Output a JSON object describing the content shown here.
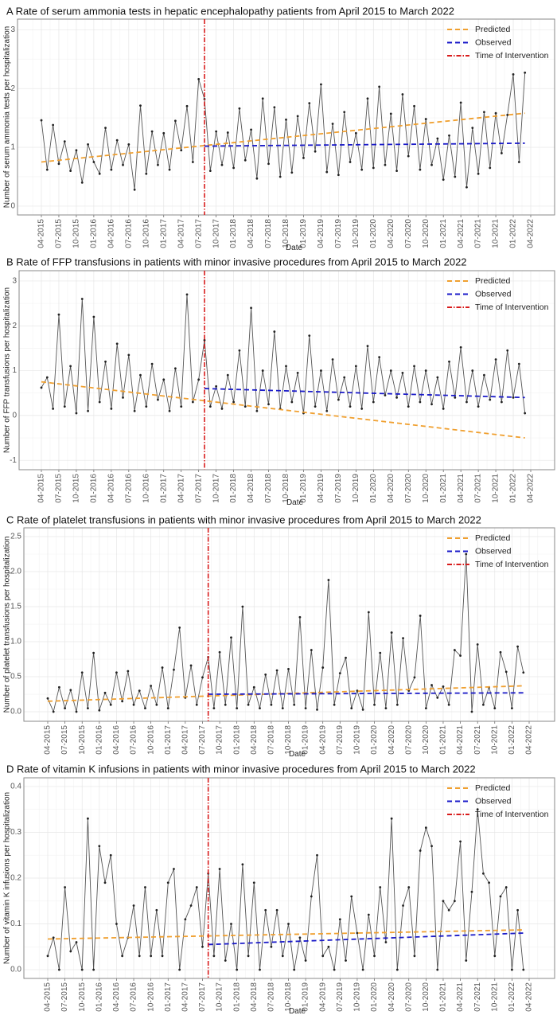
{
  "chart_data": [
    {
      "type": "line",
      "title": "A  Rate of serum ammonia tests in hepatic encephalopathy patients from April 2015 to March 2022",
      "xlabel": "Date",
      "ylabel": "Number of serum ammonia tests per hospitalization",
      "ylim": [
        -0.15,
        3.18
      ],
      "yticks": [
        0,
        1,
        2,
        3
      ],
      "ytick_labels": [
        "0",
        "1",
        "2",
        "3"
      ],
      "x_tick_labels": [
        "04-2015",
        "07-2015",
        "10-2015",
        "01-2016",
        "04-2016",
        "07-2016",
        "10-2016",
        "01-2017",
        "04-2017",
        "07-2017",
        "10-2017",
        "01-2018",
        "04-2018",
        "07-2018",
        "10-2018",
        "01-2019",
        "04-2019",
        "07-2019",
        "10-2019",
        "01-2020",
        "04-2020",
        "07-2020",
        "10-2020",
        "01-2021",
        "04-2021",
        "07-2021",
        "10-2021",
        "01-2022",
        "04-2022"
      ],
      "x_unit": "months since April 2015",
      "intervention_month": 28,
      "values": [
        1.46,
        0.62,
        1.38,
        0.72,
        1.1,
        0.6,
        0.95,
        0.4,
        1.05,
        0.75,
        0.55,
        1.33,
        0.62,
        1.12,
        0.7,
        1.05,
        0.28,
        1.71,
        0.55,
        1.27,
        0.7,
        1.24,
        0.62,
        1.45,
        0.95,
        1.7,
        0.75,
        2.16,
        1.82,
        0.6,
        1.27,
        0.7,
        1.25,
        0.65,
        1.66,
        0.78,
        1.3,
        0.47,
        1.83,
        0.72,
        1.68,
        0.5,
        1.47,
        0.57,
        1.53,
        0.82,
        1.75,
        0.93,
        2.07,
        0.58,
        1.4,
        0.53,
        1.6,
        0.75,
        1.24,
        0.62,
        1.83,
        0.65,
        2.03,
        0.7,
        1.57,
        0.6,
        1.9,
        0.85,
        1.7,
        0.62,
        1.48,
        0.7,
        1.15,
        0.45,
        1.2,
        0.5,
        1.76,
        0.32,
        1.33,
        0.55,
        1.6,
        0.65,
        1.58,
        0.9,
        1.55,
        2.24,
        0.75,
        2.27
      ],
      "predicted": {
        "start": 0.75,
        "end": 1.58
      },
      "observed_trend": {
        "start": 1.02,
        "end": 1.07
      },
      "legend": [
        "Predicted",
        "Observed",
        "Time of Intervention"
      ],
      "legend_position": "top-right"
    },
    {
      "type": "line",
      "title": "B  Rate of FFP transfusions in patients with minor invasive procedures from April 2015 to March 2022",
      "xlabel": "Date",
      "ylabel": "Number of FFP transfusions per hospitalization",
      "ylim": [
        -1.21,
        3.23
      ],
      "yticks": [
        -1,
        0,
        1,
        2,
        3
      ],
      "ytick_labels": [
        "-1",
        "0",
        "1",
        "2",
        "3"
      ],
      "x_tick_labels": [
        "04-2015",
        "07-2015",
        "10-2015",
        "01-2016",
        "04-2016",
        "07-2016",
        "10-2016",
        "01-2017",
        "04-2017",
        "07-2017",
        "10-2017",
        "01-2018",
        "04-2018",
        "07-2018",
        "10-2018",
        "01-2019",
        "04-2019",
        "07-2019",
        "10-2019",
        "01-2020",
        "04-2020",
        "07-2020",
        "10-2020",
        "01-2021",
        "04-2021",
        "07-2021",
        "10-2021",
        "01-2022",
        "04-2022"
      ],
      "x_unit": "months since April 2015",
      "intervention_month": 28,
      "values": [
        0.62,
        0.85,
        0.15,
        2.25,
        0.2,
        1.1,
        0.05,
        2.6,
        0.1,
        2.2,
        0.3,
        1.2,
        0.15,
        1.6,
        0.4,
        1.35,
        0.1,
        0.9,
        0.2,
        1.15,
        0.35,
        0.8,
        0.1,
        1.05,
        0.2,
        2.7,
        0.3,
        0.8,
        1.68,
        0.2,
        0.65,
        0.15,
        0.9,
        0.3,
        1.45,
        0.2,
        2.4,
        0.1,
        1.0,
        0.25,
        1.87,
        0.15,
        1.1,
        0.3,
        0.95,
        0.05,
        1.78,
        0.2,
        1.0,
        0.1,
        1.25,
        0.35,
        0.85,
        0.2,
        1.1,
        0.15,
        1.55,
        0.3,
        1.3,
        0.45,
        1.0,
        0.4,
        0.95,
        0.2,
        1.1,
        0.3,
        1.0,
        0.25,
        0.85,
        0.15,
        1.2,
        0.4,
        1.52,
        0.3,
        1.0,
        0.2,
        0.9,
        0.35,
        1.25,
        0.3,
        1.45,
        0.4,
        1.15,
        0.05
      ],
      "predicted": {
        "start": 0.75,
        "end": -0.5
      },
      "observed_trend": {
        "start": 0.6,
        "end": 0.4
      },
      "legend": [
        "Predicted",
        "Observed",
        "Time of Intervention"
      ],
      "legend_position": "top-right"
    },
    {
      "type": "line",
      "title": "C  Rate of platelet transfusions in patients with minor invasive procedures from April 2015 to March 2022",
      "xlabel": "Date",
      "ylabel": "Number of platelet transfusions per hospitalization",
      "ylim": [
        -0.136,
        2.625
      ],
      "yticks": [
        0,
        0.5,
        1,
        1.5,
        2,
        2.5
      ],
      "ytick_labels": [
        "0.0",
        "0.5",
        "1.0",
        "1.5",
        "2.0",
        "2.5"
      ],
      "x_tick_labels": [
        "04-2015",
        "07-2015",
        "10-2015",
        "01-2016",
        "04-2016",
        "07-2016",
        "10-2016",
        "01-2017",
        "04-2017",
        "07-2017",
        "10-2017",
        "01-2018",
        "04-2018",
        "07-2018",
        "10-2018",
        "01-2019",
        "04-2019",
        "07-2019",
        "10-2019",
        "01-2020",
        "04-2020",
        "07-2020",
        "10-2020",
        "01-2021",
        "04-2021",
        "07-2021",
        "10-2021",
        "01-2022",
        "04-2022"
      ],
      "x_unit": "months since April 2015",
      "intervention_month": 28,
      "values": [
        0.19,
        0.0,
        0.35,
        0.05,
        0.31,
        0.0,
        0.56,
        0.05,
        0.84,
        0.02,
        0.27,
        0.1,
        0.56,
        0.15,
        0.58,
        0.1,
        0.3,
        0.05,
        0.37,
        0.1,
        0.63,
        0.05,
        0.6,
        1.2,
        0.2,
        0.66,
        0.1,
        0.49,
        0.78,
        0.05,
        0.85,
        0.1,
        1.06,
        0.05,
        1.5,
        0.1,
        0.35,
        0.05,
        0.53,
        0.1,
        0.59,
        0.05,
        0.61,
        0.1,
        1.35,
        0.05,
        0.88,
        0.03,
        0.63,
        1.88,
        0.1,
        0.55,
        0.77,
        0.05,
        0.3,
        0.03,
        1.42,
        0.1,
        0.84,
        0.05,
        1.13,
        0.1,
        1.05,
        0.3,
        0.49,
        1.37,
        0.05,
        0.38,
        0.2,
        0.36,
        0.1,
        0.88,
        0.8,
        2.25,
        0.0,
        0.96,
        0.1,
        0.35,
        0.05,
        0.85,
        0.57,
        0.05,
        0.93,
        0.56
      ],
      "predicted": {
        "start": 0.15,
        "end": 0.37
      },
      "observed_trend": {
        "start": 0.25,
        "end": 0.27
      },
      "legend": [
        "Predicted",
        "Observed",
        "Time of Intervention"
      ],
      "legend_position": "top-right"
    },
    {
      "type": "line",
      "title": "D  Rate of vitamin K infusions in patients with minor invasive procedures from April 2015 to March 2022",
      "xlabel": "Date",
      "ylabel": "Number of vitamin K infusions per hospitalization",
      "ylim": [
        -0.019,
        0.419
      ],
      "yticks": [
        0,
        0.1,
        0.2,
        0.3,
        0.4
      ],
      "ytick_labels": [
        "0.0",
        "0.1",
        "0.2",
        "0.3",
        "0.4"
      ],
      "x_tick_labels": [
        "04-2015",
        "07-2015",
        "10-2015",
        "01-2016",
        "04-2016",
        "07-2016",
        "10-2016",
        "01-2017",
        "04-2017",
        "07-2017",
        "10-2017",
        "01-2018",
        "04-2018",
        "07-2018",
        "10-2018",
        "01-2019",
        "04-2019",
        "07-2019",
        "10-2019",
        "01-2020",
        "04-2020",
        "07-2020",
        "10-2020",
        "01-2021",
        "04-2021",
        "07-2021",
        "10-2021",
        "01-2022",
        "04-2022"
      ],
      "x_unit": "months since April 2015",
      "intervention_month": 28,
      "values": [
        0.03,
        0.07,
        0.0,
        0.18,
        0.04,
        0.06,
        0.0,
        0.33,
        0.0,
        0.27,
        0.19,
        0.25,
        0.1,
        0.03,
        0.07,
        0.14,
        0.03,
        0.18,
        0.03,
        0.13,
        0.03,
        0.19,
        0.22,
        0.0,
        0.11,
        0.14,
        0.18,
        0.05,
        0.21,
        0.03,
        0.22,
        0.02,
        0.1,
        0.0,
        0.23,
        0.03,
        0.19,
        0.0,
        0.13,
        0.05,
        0.13,
        0.03,
        0.1,
        0.0,
        0.07,
        0.02,
        0.16,
        0.25,
        0.03,
        0.05,
        0.0,
        0.11,
        0.02,
        0.16,
        0.08,
        0.0,
        0.12,
        0.03,
        0.18,
        0.06,
        0.33,
        0.0,
        0.14,
        0.18,
        0.03,
        0.26,
        0.31,
        0.27,
        0.0,
        0.15,
        0.13,
        0.15,
        0.28,
        0.02,
        0.17,
        0.35,
        0.21,
        0.19,
        0.03,
        0.16,
        0.18,
        0.0,
        0.13,
        0.0
      ],
      "predicted": {
        "start": 0.067,
        "end": 0.087
      },
      "observed_trend": {
        "start": 0.055,
        "end": 0.08
      },
      "legend": [
        "Predicted",
        "Observed",
        "Time of Intervention"
      ],
      "legend_position": "top-right"
    }
  ],
  "colors": {
    "predicted": "#f0a030",
    "observed": "#1a1ac8",
    "intervention": "#d81c1c",
    "series": "#222222"
  }
}
